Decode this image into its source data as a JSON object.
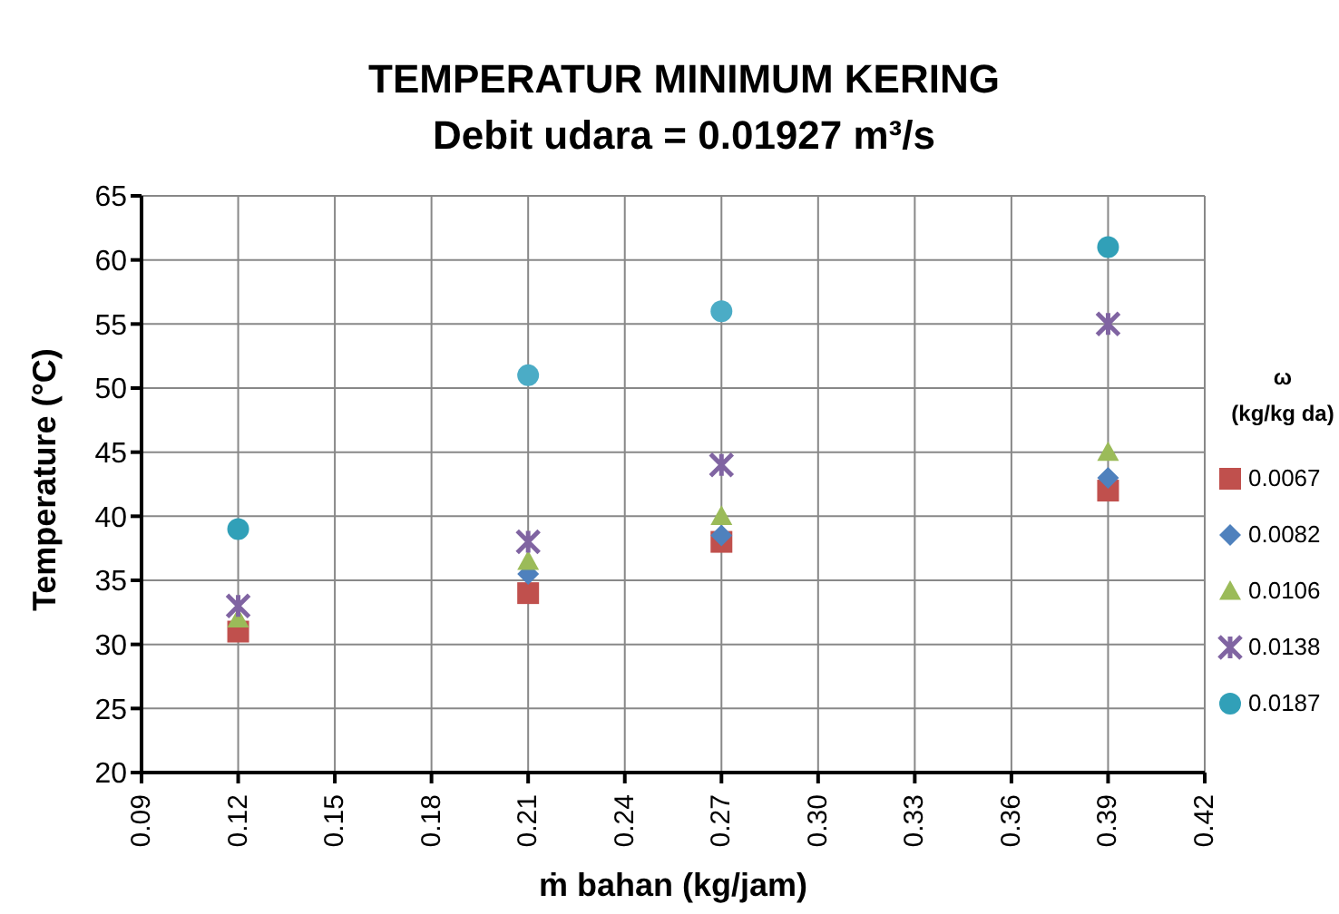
{
  "chart_data": {
    "type": "scatter",
    "title": "TEMPERATUR MINIMUM KERING",
    "subtitle": "Debit udara = 0.01927 m³/s",
    "xlabel": "ṁ bahan  (kg/jam)",
    "ylabel": "Temperature (°C)",
    "legend_title": "ω\n(kg/kg da)",
    "x": [
      0.12,
      0.21,
      0.27,
      0.39
    ],
    "series": [
      {
        "name": "0.0067",
        "color": "#c0504d",
        "marker": "square",
        "values": [
          31,
          34,
          38,
          42
        ]
      },
      {
        "name": "0.0082",
        "color": "#4f81bd",
        "marker": "diamond",
        "values": [
          null,
          35.5,
          38.5,
          43
        ]
      },
      {
        "name": "0.0106",
        "color": "#9bbb59",
        "marker": "triangle",
        "values": [
          32,
          36.5,
          40,
          45
        ]
      },
      {
        "name": "0.0138",
        "color": "#8064a2",
        "marker": "cross",
        "values": [
          33,
          38,
          44,
          55
        ]
      },
      {
        "name": "0.0187",
        "color": "#31a0b8",
        "colors": [
          "#31a0b8",
          "#4bacc6",
          "#4bacc6",
          "#31a0b8"
        ],
        "marker": "circle",
        "values": [
          39,
          51,
          56,
          61
        ]
      }
    ],
    "xlim": [
      0.09,
      0.42
    ],
    "xticks": [
      {
        "value": 0.09,
        "label": "0.09"
      },
      0.12,
      0.15,
      0.18,
      0.21,
      0.24,
      {
        "value": 0.27,
        "label": "0.27"
      },
      {
        "value": 0.3,
        "label": "0.30"
      },
      0.33,
      0.36,
      0.39,
      0.42
    ],
    "ylim": [
      20,
      65
    ],
    "yticks": [
      20,
      25,
      30,
      35,
      40,
      45,
      50,
      55,
      60,
      65
    ],
    "grid": true,
    "legend": "right"
  }
}
